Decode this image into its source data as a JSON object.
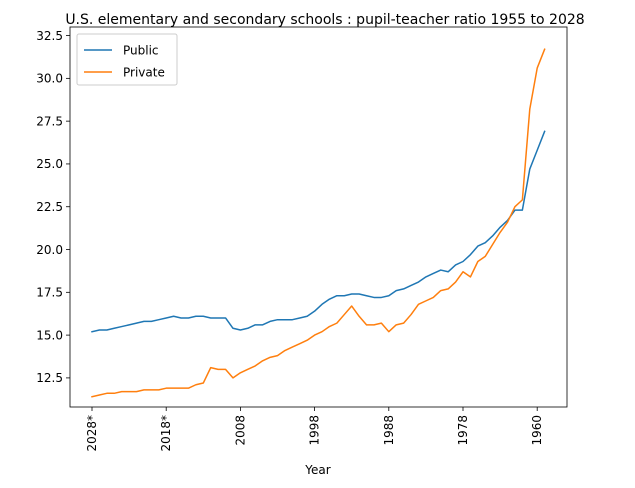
{
  "chart_data": {
    "type": "line",
    "title": "U.S. elementary and secondary schools : pupil-teacher ratio 1955 to 2028",
    "xlabel": "Year",
    "ylabel": "",
    "x_direction": "reversed",
    "xticks": [
      "2028*",
      "2018*",
      "2008",
      "1998",
      "1988",
      "1978",
      "1960"
    ],
    "yticks": [
      "12.5",
      "15.0",
      "17.5",
      "20.0",
      "22.5",
      "25.0",
      "27.5",
      "30.0",
      "32.5"
    ],
    "ylim": [
      10.8,
      33.0
    ],
    "legend_position": "upper left",
    "x": [
      2028,
      2027,
      2026,
      2025,
      2024,
      2023,
      2022,
      2021,
      2020,
      2019,
      2018,
      2017,
      2016,
      2015,
      2014,
      2013,
      2012,
      2011,
      2010,
      2009,
      2008,
      2007,
      2006,
      2005,
      2004,
      2003,
      2002,
      2001,
      2000,
      1999,
      1998,
      1997,
      1996,
      1995,
      1994,
      1993,
      1992,
      1991,
      1990,
      1989,
      1988,
      1987,
      1986,
      1985,
      1984,
      1983,
      1982,
      1981,
      1980,
      1979,
      1978,
      1977,
      1976,
      1975,
      1974,
      1973,
      1972,
      1971,
      1970,
      1969,
      1968,
      1967,
      1966,
      1965,
      1964,
      1963,
      1962
    ],
    "series": [
      {
        "name": "Public",
        "color": "#1f77b4",
        "values": [
          15.2,
          15.3,
          15.3,
          15.4,
          15.5,
          15.6,
          15.7,
          15.8,
          15.8,
          15.9,
          16.0,
          16.1,
          16.0,
          16.0,
          16.1,
          16.1,
          16.0,
          16.0,
          16.0,
          15.4,
          15.3,
          15.4,
          15.6,
          15.6,
          15.8,
          15.9,
          15.9,
          15.9,
          16.0,
          16.1,
          16.4,
          16.8,
          17.1,
          17.3,
          17.3,
          17.4,
          17.4,
          17.3,
          17.2,
          17.2,
          17.3,
          17.6,
          17.7,
          17.9,
          18.1,
          18.4,
          18.6,
          18.8,
          18.7,
          19.1,
          19.3,
          19.7,
          20.2,
          20.4,
          20.8,
          21.3,
          21.7,
          22.3,
          22.3,
          24.7,
          25.8,
          26.9,
          null,
          null,
          null,
          null,
          null
        ]
      },
      {
        "name": "Private",
        "color": "#ff7f0e",
        "values": [
          11.4,
          11.5,
          11.6,
          11.6,
          11.7,
          11.7,
          11.7,
          11.8,
          11.8,
          11.8,
          11.9,
          11.9,
          11.9,
          11.9,
          12.1,
          12.2,
          13.1,
          13.0,
          13.0,
          12.5,
          12.8,
          13.0,
          13.2,
          13.5,
          13.7,
          13.8,
          14.1,
          14.3,
          14.5,
          14.7,
          15.0,
          15.2,
          15.5,
          15.7,
          16.2,
          16.7,
          16.1,
          15.6,
          15.6,
          15.7,
          15.2,
          15.6,
          15.7,
          16.2,
          16.8,
          17.0,
          17.2,
          17.6,
          17.7,
          18.1,
          18.7,
          18.4,
          19.3,
          19.6,
          20.3,
          21.0,
          21.6,
          22.5,
          22.9,
          28.2,
          30.6,
          31.7,
          null,
          null,
          null,
          null,
          null
        ]
      }
    ]
  }
}
